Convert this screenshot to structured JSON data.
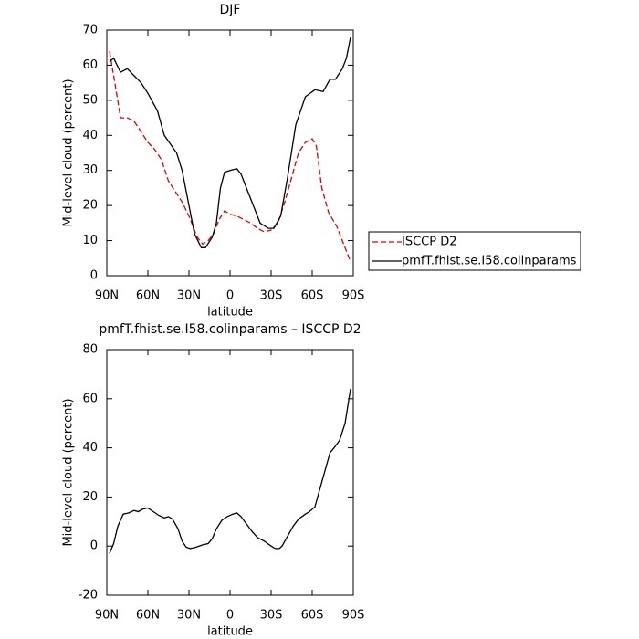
{
  "chart_data": [
    {
      "type": "line",
      "title": "DJF",
      "xlabel": "latitude",
      "ylabel": "Mid-level cloud (percent)",
      "xlim": [
        90,
        -90
      ],
      "ylim": [
        0,
        70
      ],
      "xticks": [
        {
          "value": 90,
          "label": "90N"
        },
        {
          "value": 60,
          "label": "60N"
        },
        {
          "value": 30,
          "label": "30N"
        },
        0,
        {
          "value": -30,
          "label": "30S"
        },
        {
          "value": -60,
          "label": "60S"
        },
        {
          "value": -90,
          "label": "90S"
        }
      ],
      "yticks": [
        0,
        10,
        20,
        30,
        40,
        50,
        60,
        70
      ],
      "legend": "right",
      "series": [
        {
          "name": "ISCCP D2",
          "color": "#e00000",
          "dash": true,
          "x": [
            88,
            85,
            82,
            80,
            75,
            70,
            65,
            60,
            55,
            50,
            45,
            40,
            35,
            30,
            27,
            24,
            20,
            16,
            12,
            8,
            4,
            0,
            -5,
            -10,
            -15,
            -20,
            -25,
            -30,
            -35,
            -40,
            -45,
            -50,
            -55,
            -60,
            -63,
            -67,
            -72,
            -78,
            -83,
            -88
          ],
          "values": [
            64,
            57,
            50,
            45,
            45,
            44,
            41,
            38,
            36,
            33,
            27,
            24,
            21,
            17,
            14,
            11,
            9,
            10,
            12,
            16,
            18.5,
            17.5,
            17,
            16,
            15,
            13.5,
            12.5,
            13,
            15,
            21,
            28,
            35,
            38,
            39,
            37,
            25,
            18,
            14,
            9,
            4
          ]
        },
        {
          "name": "pmfT.fhist.se.I58.colinparams",
          "color": "#000000",
          "dash": false,
          "x": [
            88,
            85,
            80,
            75,
            70,
            65,
            60,
            53,
            48,
            39,
            35,
            30,
            26,
            21,
            18,
            13,
            10,
            7,
            4,
            0,
            -5,
            -8,
            -15,
            -22,
            -28,
            -32,
            -37,
            -42,
            -48,
            -55,
            -62,
            -68,
            -73,
            -77,
            -82,
            -85,
            -88
          ],
          "values": [
            61,
            62,
            58,
            59,
            57,
            55,
            52,
            47,
            40,
            35,
            30,
            20,
            12,
            8,
            8,
            11,
            15,
            25,
            29.5,
            30,
            30.5,
            29,
            22,
            15,
            13.5,
            13.5,
            17,
            28,
            43,
            51,
            53,
            52.5,
            56,
            56,
            59,
            62,
            68
          ]
        }
      ]
    },
    {
      "type": "line",
      "title": "pmfT.fhist.se.I58.colinparams – ISCCP D2",
      "xlabel": "latitude",
      "ylabel": "Mid-level cloud (percent)",
      "xlim": [
        90,
        -90
      ],
      "ylim": [
        -20,
        80
      ],
      "xticks": [
        {
          "value": 90,
          "label": "90N"
        },
        {
          "value": 60,
          "label": "60N"
        },
        {
          "value": 30,
          "label": "30N"
        },
        0,
        {
          "value": -30,
          "label": "30S"
        },
        {
          "value": -60,
          "label": "60S"
        },
        {
          "value": -90,
          "label": "90S"
        }
      ],
      "yticks": [
        -20,
        0,
        20,
        40,
        60,
        80
      ],
      "series": [
        {
          "color": "#000000",
          "dash": false,
          "x": [
            88,
            85,
            82,
            78,
            74,
            70,
            67,
            64,
            60,
            56,
            52,
            48,
            45,
            42,
            38,
            35,
            32,
            29,
            25,
            20,
            16,
            13,
            10,
            6,
            2,
            -2,
            -5,
            -8,
            -12,
            -16,
            -20,
            -25,
            -30,
            -33,
            -36,
            -38,
            -42,
            -46,
            -50,
            -55,
            -58,
            -62,
            -66,
            -70,
            -73,
            -76,
            -80,
            -84,
            -88
          ],
          "values": [
            -3,
            1,
            8,
            13,
            13.5,
            14.5,
            14,
            15,
            15.5,
            14,
            12.5,
            11.5,
            12,
            11,
            7,
            2,
            -0.5,
            -1,
            -0.5,
            0.5,
            1,
            3,
            7,
            10.5,
            12,
            13,
            13.5,
            12,
            9,
            6,
            3.5,
            2,
            0,
            -1,
            -1,
            0,
            4,
            8,
            11,
            13,
            14,
            16,
            24,
            32,
            38,
            40,
            43,
            50,
            64
          ]
        }
      ]
    }
  ]
}
